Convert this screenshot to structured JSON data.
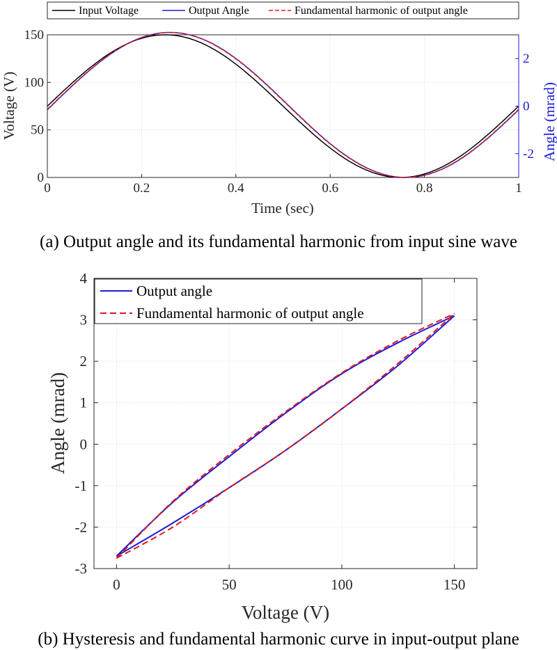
{
  "chart_data": [
    {
      "id": "a",
      "type": "line",
      "caption": "(a) Output angle and its fundamental harmonic from input sine wave",
      "xlabel": "Time (sec)",
      "ylabel": "Voltage (V)",
      "y2label": "Angle (mrad)",
      "xlim": [
        0,
        1
      ],
      "ylim": [
        0,
        150
      ],
      "y2lim": [
        -3.0,
        3.0
      ],
      "xticks": [
        "0",
        "0.2",
        "0.4",
        "0.6",
        "0.8",
        "1"
      ],
      "yticks": [
        "0",
        "50",
        "100",
        "150"
      ],
      "y2ticks": [
        "-2",
        "0",
        "2"
      ],
      "grid": true,
      "legend_position": "top",
      "series": [
        {
          "name": "Input Voltage",
          "color": "#000000",
          "style": "solid",
          "formula": "voltage = 75 + 75*sin(2*pi*t)",
          "x": [
            0,
            0.1,
            0.2,
            0.25,
            0.3,
            0.4,
            0.5,
            0.6,
            0.7,
            0.75,
            0.8,
            0.9,
            1.0
          ],
          "y": [
            75,
            119.1,
            146.3,
            150,
            146.3,
            119.1,
            75,
            30.9,
            3.7,
            0,
            3.7,
            30.9,
            75
          ]
        },
        {
          "name": "Output Angle",
          "color": "#2020c8",
          "style": "solid",
          "x": [
            0,
            0.1,
            0.2,
            0.26,
            0.3,
            0.4,
            0.5,
            0.6,
            0.7,
            0.76,
            0.8,
            0.9,
            1.0
          ],
          "y": [
            0.18,
            1.9,
            2.9,
            3.1,
            2.95,
            2.1,
            0.35,
            -1.6,
            -2.85,
            -3.0,
            -2.85,
            -1.9,
            0.18
          ]
        },
        {
          "name": "Fundamental harmonic of output angle",
          "color": "#e0191c",
          "style": "dashed",
          "x": [
            0,
            0.1,
            0.2,
            0.26,
            0.3,
            0.4,
            0.5,
            0.6,
            0.7,
            0.76,
            0.8,
            0.9,
            1.0
          ],
          "y": [
            0.2,
            1.92,
            2.9,
            3.1,
            2.95,
            2.1,
            0.38,
            -1.58,
            -2.85,
            -3.0,
            -2.85,
            -1.88,
            0.2
          ]
        }
      ]
    },
    {
      "id": "b",
      "type": "line",
      "caption": "(b) Hysteresis and fundamental harmonic curve in input-output plane",
      "xlabel": "Voltage (V)",
      "ylabel": "Angle (mrad)",
      "xlim": [
        -10,
        160
      ],
      "ylim": [
        -3,
        4
      ],
      "xticks": [
        "0",
        "50",
        "100",
        "150"
      ],
      "yticks": [
        "-3",
        "-2",
        "-1",
        "0",
        "1",
        "2",
        "3",
        "4"
      ],
      "grid": true,
      "legend_position": "top-left",
      "series": [
        {
          "name": "Output angle",
          "color": "#1a1ad6",
          "style": "solid",
          "upper_branch": {
            "x": [
              0,
              25,
              50,
              75,
              100,
              125,
              150
            ],
            "y": [
              -2.7,
              -1.4,
              -0.3,
              0.75,
              1.7,
              2.45,
              3.1
            ]
          },
          "lower_branch": {
            "x": [
              0,
              25,
              50,
              75,
              100,
              125,
              150
            ],
            "y": [
              -2.7,
              -1.9,
              -1.05,
              -0.15,
              0.85,
              1.9,
              3.1
            ]
          }
        },
        {
          "name": "Fundamental harmonic of output angle",
          "color": "#e0191c",
          "style": "dashed",
          "upper_branch": {
            "x": [
              0,
              25,
              50,
              75,
              100,
              125,
              150
            ],
            "y": [
              -2.75,
              -1.38,
              -0.25,
              0.78,
              1.72,
              2.5,
              3.15
            ]
          },
          "lower_branch": {
            "x": [
              0,
              25,
              50,
              75,
              100,
              125,
              150
            ],
            "y": [
              -2.75,
              -2.0,
              -1.05,
              -0.15,
              0.85,
              1.95,
              3.15
            ]
          }
        }
      ]
    }
  ]
}
